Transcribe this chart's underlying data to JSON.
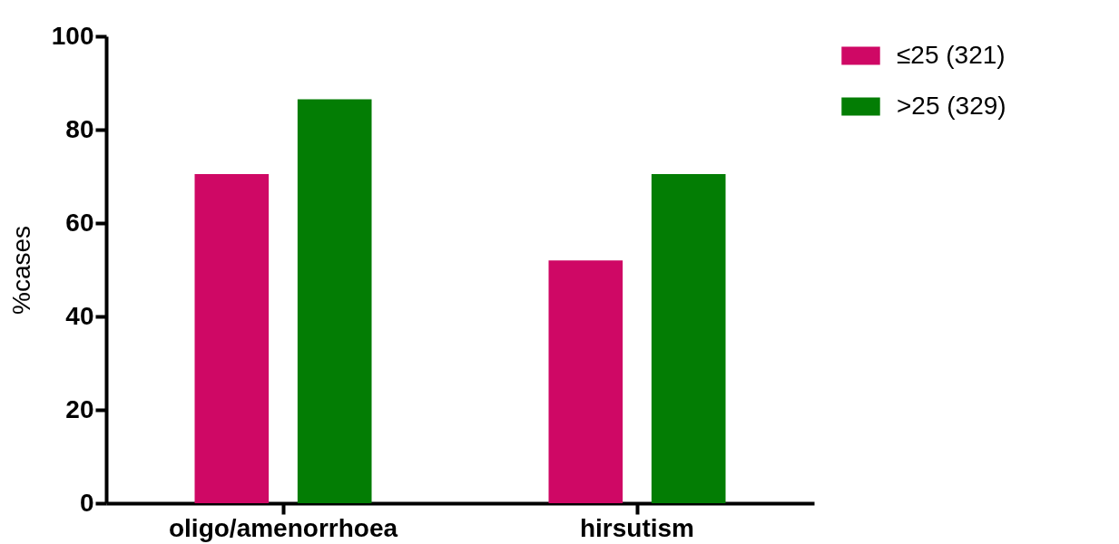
{
  "chart_data": {
    "type": "bar",
    "ylabel": "%cases",
    "categories": [
      "oligo/amenorrhoea",
      "hirsutism"
    ],
    "series": [
      {
        "name": "≤25 (321)",
        "color": "#cf0865",
        "values": [
          70.5,
          52
        ]
      },
      {
        "name": ">25 (329)",
        "color": "#037d04",
        "values": [
          86.5,
          70.5
        ]
      }
    ],
    "ylim": [
      0,
      100
    ],
    "yticks": [
      0,
      20,
      40,
      60,
      80,
      100
    ],
    "grid": false,
    "legend": "top right"
  }
}
